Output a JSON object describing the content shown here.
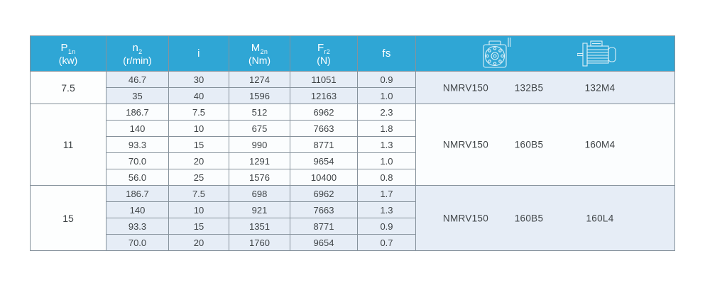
{
  "table": {
    "colors": {
      "header_bg": "#2fa6d5",
      "shaded_row_bg": "#e6edf6",
      "plain_row_bg": "#fbfdfe",
      "border": "#86929c",
      "text": "#3f4447",
      "header_text": "#ffffff"
    },
    "columns": [
      {
        "label_main": "P",
        "label_sub": "1n",
        "label_unit": "(kw)"
      },
      {
        "label_main": "n",
        "label_sub": "2",
        "label_unit": "(r/min)"
      },
      {
        "label_main": "i",
        "label_sub": "",
        "label_unit": ""
      },
      {
        "label_main": "M",
        "label_sub": "2n",
        "label_unit": "(Nm)"
      },
      {
        "label_main": "F",
        "label_sub": "r2",
        "label_unit": "(N)"
      },
      {
        "label_main": "fs",
        "label_sub": "",
        "label_unit": ""
      }
    ],
    "icon_columns": [
      "worm-gearbox-icon",
      "electric-motor-icon"
    ],
    "groups": [
      {
        "power": "7.5",
        "shaded": true,
        "gearbox": "NMRV150",
        "flange": "132B5",
        "motor": "132M4",
        "rows": [
          [
            "46.7",
            "30",
            "1274",
            "11051",
            "0.9"
          ],
          [
            "35",
            "40",
            "1596",
            "12163",
            "1.0"
          ]
        ]
      },
      {
        "power": "11",
        "shaded": false,
        "gearbox": "NMRV150",
        "flange": "160B5",
        "motor": "160M4",
        "rows": [
          [
            "186.7",
            "7.5",
            "512",
            "6962",
            "2.3"
          ],
          [
            "140",
            "10",
            "675",
            "7663",
            "1.8"
          ],
          [
            "93.3",
            "15",
            "990",
            "8771",
            "1.3"
          ],
          [
            "70.0",
            "20",
            "1291",
            "9654",
            "1.0"
          ],
          [
            "56.0",
            "25",
            "1576",
            "10400",
            "0.8"
          ]
        ]
      },
      {
        "power": "15",
        "shaded": true,
        "gearbox": "NMRV150",
        "flange": "160B5",
        "motor": "160L4",
        "rows": [
          [
            "186.7",
            "7.5",
            "698",
            "6962",
            "1.7"
          ],
          [
            "140",
            "10",
            "921",
            "7663",
            "1.3"
          ],
          [
            "93.3",
            "15",
            "1351",
            "8771",
            "0.9"
          ],
          [
            "70.0",
            "20",
            "1760",
            "9654",
            "0.7"
          ]
        ]
      }
    ]
  }
}
